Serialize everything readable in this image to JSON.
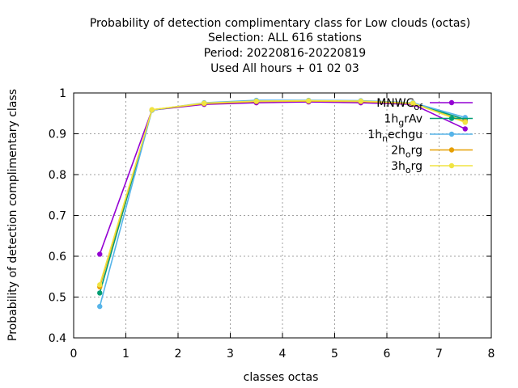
{
  "chart_data": {
    "type": "line",
    "title_lines": [
      "Probability of detection complimentary class  for Low clouds (octas)",
      "Selection: ALL    616 stations",
      "Period: 20220816-20220819",
      "Used  All hours + 01 02 03"
    ],
    "xlabel": "classes octas",
    "ylabel": "Probability of detection complimentary class",
    "xlim": [
      0,
      8
    ],
    "ylim": [
      0.4,
      1.0
    ],
    "xticks": [
      "0",
      "1",
      "2",
      "3",
      "4",
      "5",
      "6",
      "7",
      "8"
    ],
    "yticks": [
      "0.4",
      "0.5",
      "0.6",
      "0.7",
      "0.8",
      "0.9",
      "1"
    ],
    "grid": true,
    "legend_position": "top-right",
    "x": [
      0.5,
      1.5,
      2.5,
      3.5,
      4.5,
      5.5,
      6.5,
      7.5
    ],
    "series": [
      {
        "name_main": "MNWC",
        "name_sub": "of",
        "name_tail": "",
        "color": "#9400d3",
        "values": [
          0.605,
          0.958,
          0.972,
          0.976,
          0.978,
          0.976,
          0.972,
          0.912
        ]
      },
      {
        "name_main": "1h",
        "name_sub": "g",
        "name_tail": "rAv",
        "color": "#009e73",
        "values": [
          0.51,
          0.958,
          0.975,
          0.98,
          0.981,
          0.98,
          0.975,
          0.935
        ]
      },
      {
        "name_main": "1h",
        "name_sub": "n",
        "name_tail": "echgu",
        "color": "#56b4e9",
        "values": [
          0.477,
          0.958,
          0.976,
          0.982,
          0.982,
          0.981,
          0.976,
          0.94
        ]
      },
      {
        "name_main": "2h",
        "name_sub": "o",
        "name_tail": "rg",
        "color": "#e69f00",
        "values": [
          0.525,
          0.959,
          0.974,
          0.979,
          0.98,
          0.979,
          0.974,
          0.93
        ]
      },
      {
        "name_main": "3h",
        "name_sub": "o",
        "name_tail": "rg",
        "color": "#f0e442",
        "values": [
          0.53,
          0.959,
          0.975,
          0.98,
          0.981,
          0.98,
          0.975,
          0.928
        ]
      }
    ]
  }
}
